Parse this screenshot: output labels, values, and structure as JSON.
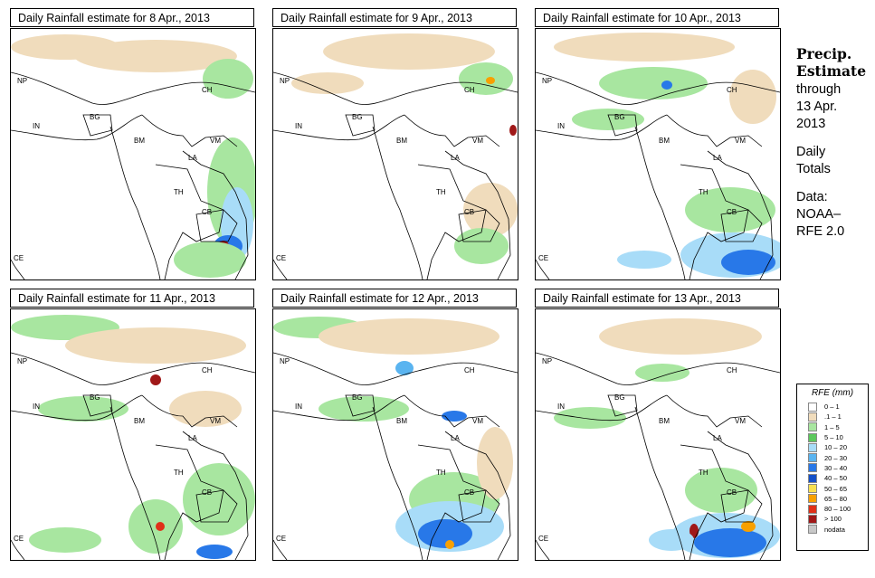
{
  "panels": [
    {
      "title": "Daily Rainfall estimate for  8 Apr., 2013"
    },
    {
      "title": "Daily Rainfall estimate for  9 Apr., 2013"
    },
    {
      "title": "Daily Rainfall estimate for  10 Apr., 2013"
    },
    {
      "title": "Daily Rainfall estimate for  11 Apr., 2013"
    },
    {
      "title": "Daily Rainfall estimate for  12 Apr., 2013"
    },
    {
      "title": "Daily Rainfall estimate for  13 Apr., 2013"
    }
  ],
  "map_labels": [
    "NP",
    "CH",
    "IN",
    "BG",
    "BM",
    "VM",
    "LA",
    "TH",
    "CB",
    "CE"
  ],
  "side": {
    "title_line1": "Precip.",
    "title_line2": "Estimate",
    "through": "through",
    "date_line1": "13 Apr.",
    "date_line2": "2013",
    "daily1": "Daily",
    "daily2": "Totals",
    "data1": "Data:",
    "data2": "NOAA–",
    "data3": "RFE 2.0"
  },
  "legend": {
    "title": "RFE (mm)",
    "items": [
      {
        "label": "0 – 1",
        "color": "#ffffff"
      },
      {
        "label": ".1 – 1",
        "color": "#f0dcbc"
      },
      {
        "label": "1 – 5",
        "color": "#a8e6a0"
      },
      {
        "label": "5 – 10",
        "color": "#5cc85c"
      },
      {
        "label": "10 – 20",
        "color": "#a8dcf8"
      },
      {
        "label": "20 – 30",
        "color": "#5ab4f0"
      },
      {
        "label": "30 – 40",
        "color": "#2878e8"
      },
      {
        "label": "40 – 50",
        "color": "#1450c8"
      },
      {
        "label": "50 – 65",
        "color": "#f8e050"
      },
      {
        "label": "65 – 80",
        "color": "#f8a000"
      },
      {
        "label": "80 – 100",
        "color": "#e03018"
      },
      {
        "label": "> 100",
        "color": "#a01818"
      },
      {
        "label": "nodata",
        "color": "#c8c8c8"
      }
    ]
  }
}
